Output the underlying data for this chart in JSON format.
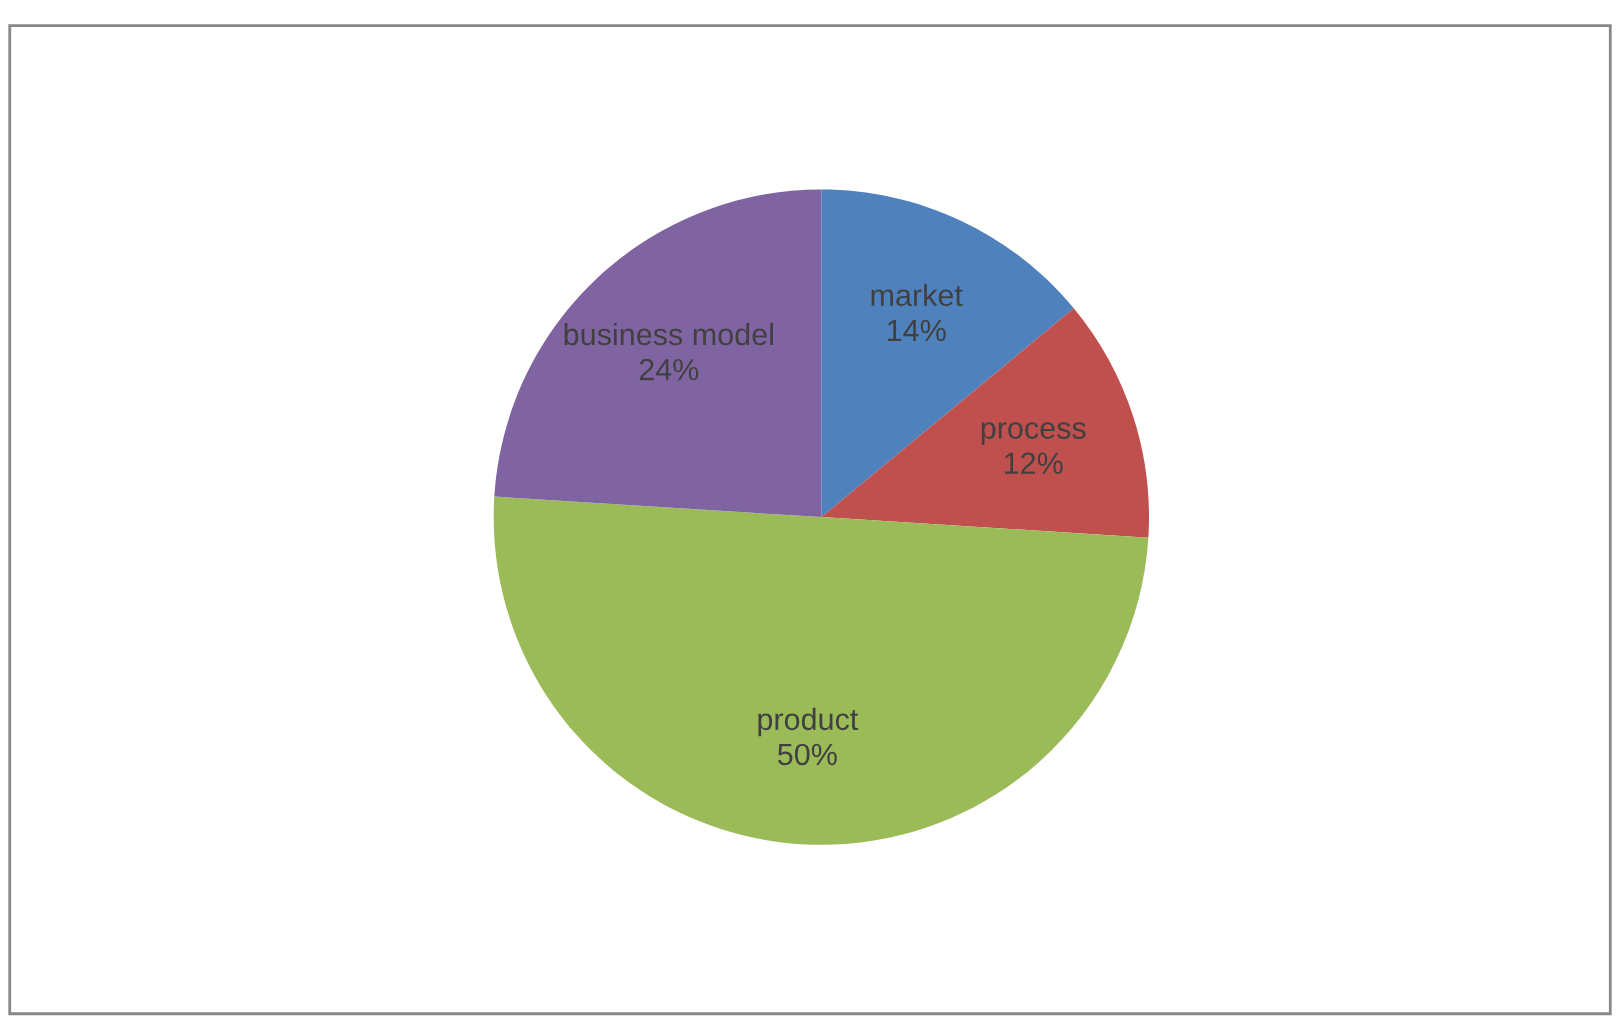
{
  "chart_data": {
    "type": "pie",
    "categories": [
      "market",
      "process",
      "product",
      "business model"
    ],
    "values": [
      14,
      12,
      50,
      24
    ],
    "colors": [
      "#4f81bd",
      "#c0504d",
      "#9bbb59",
      "#8064a2"
    ],
    "value_labels": [
      "14%",
      "12%",
      "50%",
      "24%"
    ],
    "legend": false
  }
}
